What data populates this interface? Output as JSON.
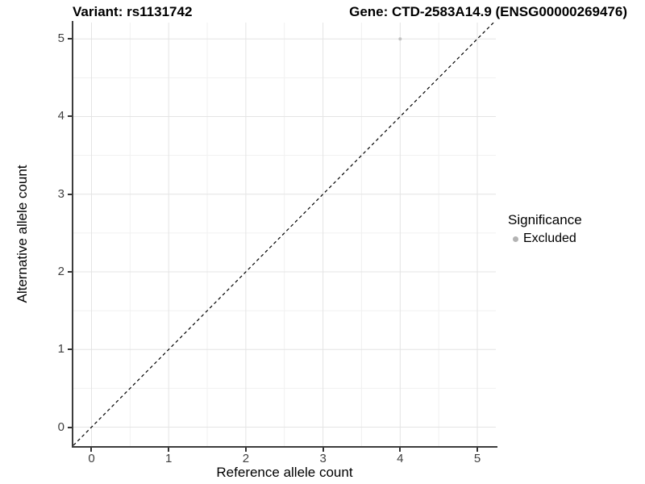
{
  "titles": {
    "variant": "Variant: rs1131742",
    "gene": "Gene: CTD-2583A14.9 (ENSG00000269476)"
  },
  "axes": {
    "x_label": "Reference allele count",
    "y_label": "Alternative allele count"
  },
  "legend": {
    "title": "Significance",
    "items": [
      {
        "label": "Excluded",
        "color": "#b3b3b3"
      }
    ]
  },
  "colors": {
    "axis_line": "#3c3c3c",
    "tick_label": "#404040",
    "grid_major": "#e4e4e4",
    "grid_minor": "#f1f1f1",
    "point": "#c2c2c2",
    "reference_line": "#000000",
    "background": "#ffffff"
  },
  "chart_data": {
    "type": "scatter",
    "title": "Variant: rs1131742 / Gene: CTD-2583A14.9 (ENSG00000269476)",
    "xlabel": "Reference allele count",
    "ylabel": "Alternative allele count",
    "xlim": [
      -0.235,
      5.24
    ],
    "ylim": [
      -0.244,
      5.21
    ],
    "x_ticks": [
      0,
      1,
      2,
      3,
      4,
      5
    ],
    "y_ticks": [
      0,
      1,
      2,
      3,
      4,
      5
    ],
    "minor_ticks_x": [
      0.5,
      1.5,
      2.5,
      3.5,
      4.5
    ],
    "minor_ticks_y": [
      0.5,
      1.5,
      2.5,
      3.5,
      4.5
    ],
    "grid": true,
    "legend_position": "right",
    "series": [
      {
        "name": "Excluded",
        "color": "#c2c2c2",
        "point_radius": 2,
        "points": [
          {
            "x": 4,
            "y": 5
          }
        ]
      }
    ],
    "reference_line": {
      "type": "identity",
      "style": "dashed",
      "color": "#000000",
      "width": 1.2
    }
  }
}
